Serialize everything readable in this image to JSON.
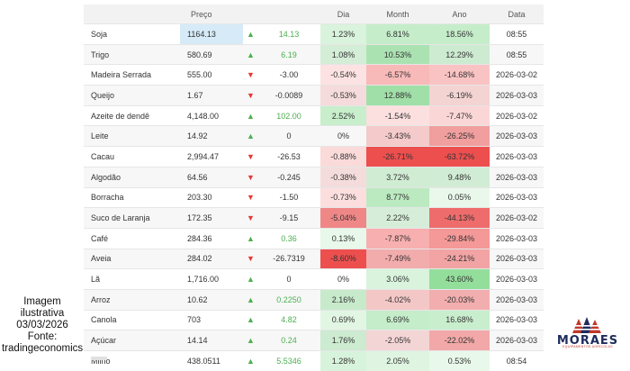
{
  "table": {
    "headers": {
      "preco": "Preço",
      "dia": "Dia",
      "month": "Month",
      "ano": "Ano",
      "data": "Data"
    },
    "rows": [
      {
        "name": "Soja",
        "price": "1164.13",
        "dir": "up",
        "change": "14.13",
        "dia": "1.23%",
        "month": "6.81%",
        "ano": "18.56%",
        "date": "08:55"
      },
      {
        "name": "Trigo",
        "price": "580.69",
        "dir": "up",
        "change": "6.19",
        "dia": "1.08%",
        "month": "10.53%",
        "ano": "12.29%",
        "date": "08:55"
      },
      {
        "name": "Madeira Serrada",
        "price": "555.00",
        "dir": "down",
        "change": "-3.00",
        "dia": "-0.54%",
        "month": "-6.57%",
        "ano": "-14.68%",
        "date": "2026-03-02"
      },
      {
        "name": "Queijo",
        "price": "1.67",
        "dir": "down",
        "change": "-0.0089",
        "dia": "-0.53%",
        "month": "12.88%",
        "ano": "-6.19%",
        "date": "2026-03-03"
      },
      {
        "name": "Azeite de dendê",
        "price": "4,148.00",
        "dir": "up",
        "change": "102.00",
        "dia": "2.52%",
        "month": "-1.54%",
        "ano": "-7.47%",
        "date": "2026-03-02"
      },
      {
        "name": "Leite",
        "price": "14.92",
        "dir": "up",
        "change": "0",
        "dia": "0%",
        "month": "-3.43%",
        "ano": "-26.25%",
        "date": "2026-03-03"
      },
      {
        "name": "Cacau",
        "price": "2,994.47",
        "dir": "down",
        "change": "-26.53",
        "dia": "-0.88%",
        "month": "-26.71%",
        "ano": "-63.72%",
        "date": "2026-03-03"
      },
      {
        "name": "Algodão",
        "price": "64.56",
        "dir": "down",
        "change": "-0.245",
        "dia": "-0.38%",
        "month": "3.72%",
        "ano": "9.48%",
        "date": "2026-03-03"
      },
      {
        "name": "Borracha",
        "price": "203.30",
        "dir": "down",
        "change": "-1.50",
        "dia": "-0.73%",
        "month": "8.77%",
        "ano": "0.05%",
        "date": "2026-03-03"
      },
      {
        "name": "Suco de Laranja",
        "price": "172.35",
        "dir": "down",
        "change": "-9.15",
        "dia": "-5.04%",
        "month": "2.22%",
        "ano": "-44.13%",
        "date": "2026-03-02"
      },
      {
        "name": "Café",
        "price": "284.36",
        "dir": "up",
        "change": "0.36",
        "dia": "0.13%",
        "month": "-7.87%",
        "ano": "-29.84%",
        "date": "2026-03-03"
      },
      {
        "name": "Aveia",
        "price": "284.02",
        "dir": "down",
        "change": "-26.7319",
        "dia": "-8.60%",
        "month": "-7.49%",
        "ano": "-24.21%",
        "date": "2026-03-03"
      },
      {
        "name": "Lã",
        "price": "1,716.00",
        "dir": "up",
        "change": "0",
        "dia": "0%",
        "month": "3.06%",
        "ano": "43.60%",
        "date": "2026-03-03"
      },
      {
        "name": "Arroz",
        "price": "10.62",
        "dir": "up",
        "change": "0.2250",
        "dia": "2.16%",
        "month": "-4.02%",
        "ano": "-20.03%",
        "date": "2026-03-03"
      },
      {
        "name": "Canola",
        "price": "703",
        "dir": "up",
        "change": "4.82",
        "dia": "0.69%",
        "month": "6.69%",
        "ano": "16.68%",
        "date": "2026-03-03"
      },
      {
        "name": "Açúcar",
        "price": "14.14",
        "dir": "up",
        "change": "0.24",
        "dia": "1.76%",
        "month": "-2.05%",
        "ano": "-22.02%",
        "date": "2026-03-03"
      },
      {
        "name": "Milho",
        "price": "438.0511",
        "dir": "up",
        "change": "5.5346",
        "dia": "1.28%",
        "month": "2.05%",
        "ano": "0.53%",
        "date": "08:54"
      }
    ]
  },
  "caption": {
    "line1": "Imagem ilustrativa",
    "line2": "03/03/2026",
    "line3": "Fonte:",
    "line4": "tradingeconomics"
  },
  "logo": {
    "brand": "MORAES",
    "tagline": "EQUIPAMENTOS AGRÍCOLAS"
  },
  "icons": {
    "up": "triangle-up-icon",
    "down": "triangle-down-icon"
  },
  "colors": {
    "up_arrow": "#4caf50",
    "down_arrow": "#e53935",
    "price_highlight": "#d6ebf7",
    "brand_navy": "#1e2c5c",
    "brand_red": "#c0392b"
  }
}
